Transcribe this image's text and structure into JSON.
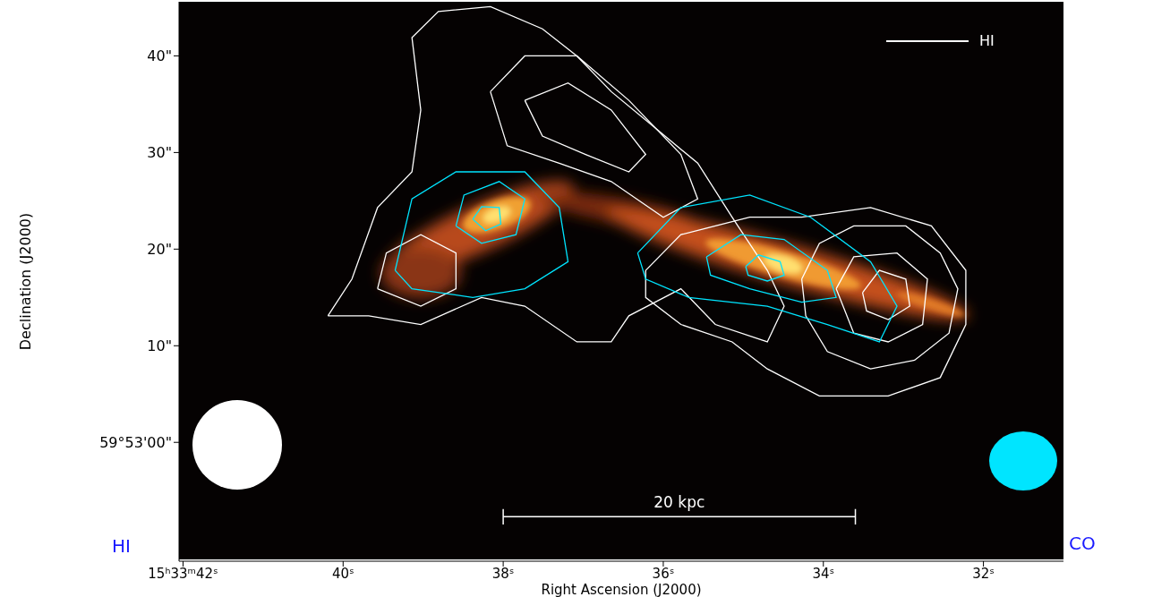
{
  "chart_data": {
    "type": "contour",
    "x_label": "Right Ascension (J2000)",
    "y_label": "Declination (J2000)",
    "xlim": [
      42.05,
      31.0
    ],
    "xticks": [
      {
        "value": 42,
        "label": "15ʰ33ᵐ42ˢ"
      },
      {
        "value": 40,
        "label": "40ˢ"
      },
      {
        "value": 38,
        "label": "38ˢ"
      },
      {
        "value": 36,
        "label": "36ˢ"
      },
      {
        "value": 34,
        "label": "34ˢ"
      },
      {
        "value": 32,
        "label": "32ˢ"
      }
    ],
    "ylim": [
      -12.3,
      45.6
    ],
    "yticks": [
      {
        "value": 0,
        "label": "59°53'00\""
      },
      {
        "value": 10,
        "label": "10\""
      },
      {
        "value": 20,
        "label": "20\""
      },
      {
        "value": 30,
        "label": "30\""
      },
      {
        "value": 40,
        "label": "40\""
      }
    ],
    "grid": false,
    "legend": "top-right",
    "scale_bar": {
      "label": "20 kpc",
      "x": [
        38.0,
        33.6
      ],
      "y": -7.7
    },
    "series": [
      {
        "name": "HI",
        "color": "#ffffff",
        "contours": [
          [
            [
              40.19,
              13.1
            ],
            [
              39.89,
              16.9
            ],
            [
              39.57,
              24.3
            ],
            [
              39.14,
              28.0
            ],
            [
              39.03,
              34.4
            ],
            [
              39.14,
              41.9
            ],
            [
              38.81,
              44.6
            ],
            [
              38.16,
              45.1
            ],
            [
              37.51,
              42.8
            ],
            [
              37.08,
              40.0
            ],
            [
              36.65,
              36.3
            ],
            [
              36.11,
              32.6
            ],
            [
              35.57,
              28.9
            ],
            [
              35.14,
              23.3
            ],
            [
              34.7,
              17.8
            ],
            [
              34.49,
              14.1
            ],
            [
              34.7,
              10.4
            ],
            [
              35.35,
              12.2
            ],
            [
              35.78,
              15.9
            ],
            [
              36.43,
              13.1
            ],
            [
              36.65,
              10.4
            ],
            [
              37.08,
              10.4
            ],
            [
              37.73,
              14.1
            ],
            [
              38.27,
              15.0
            ],
            [
              39.03,
              12.2
            ],
            [
              39.68,
              13.1
            ]
          ],
          [
            [
              38.16,
              36.3
            ],
            [
              37.73,
              40.0
            ],
            [
              37.08,
              40.0
            ],
            [
              36.43,
              35.4
            ],
            [
              35.78,
              29.8
            ],
            [
              35.57,
              25.2
            ],
            [
              36.0,
              23.3
            ],
            [
              36.65,
              27.0
            ],
            [
              37.3,
              28.9
            ],
            [
              37.95,
              30.7
            ]
          ],
          [
            [
              37.73,
              35.4
            ],
            [
              37.19,
              37.2
            ],
            [
              36.65,
              34.4
            ],
            [
              36.22,
              29.8
            ],
            [
              36.43,
              28.0
            ],
            [
              36.97,
              29.8
            ],
            [
              37.51,
              31.7
            ]
          ],
          [
            [
              36.22,
              17.8
            ],
            [
              35.78,
              21.5
            ],
            [
              34.92,
              23.3
            ],
            [
              34.27,
              23.3
            ],
            [
              33.41,
              24.3
            ],
            [
              32.65,
              22.4
            ],
            [
              32.22,
              17.8
            ],
            [
              32.22,
              12.2
            ],
            [
              32.54,
              6.7
            ],
            [
              33.19,
              4.8
            ],
            [
              34.05,
              4.8
            ],
            [
              34.7,
              7.6
            ],
            [
              35.14,
              10.4
            ],
            [
              35.78,
              12.2
            ],
            [
              36.22,
              15.0
            ]
          ],
          [
            [
              34.27,
              16.9
            ],
            [
              34.05,
              20.6
            ],
            [
              33.62,
              22.4
            ],
            [
              32.97,
              22.4
            ],
            [
              32.54,
              19.6
            ],
            [
              32.32,
              15.9
            ],
            [
              32.43,
              11.3
            ],
            [
              32.86,
              8.5
            ],
            [
              33.41,
              7.6
            ],
            [
              33.95,
              9.4
            ],
            [
              34.22,
              13.1
            ]
          ],
          [
            [
              33.84,
              15.9
            ],
            [
              33.62,
              19.2
            ],
            [
              33.08,
              19.6
            ],
            [
              32.7,
              16.9
            ],
            [
              32.76,
              12.2
            ],
            [
              33.19,
              10.4
            ],
            [
              33.62,
              11.3
            ]
          ],
          [
            [
              33.51,
              15.5
            ],
            [
              33.3,
              17.8
            ],
            [
              32.97,
              16.9
            ],
            [
              32.92,
              14.1
            ],
            [
              33.19,
              12.7
            ],
            [
              33.46,
              13.6
            ]
          ],
          [
            [
              39.57,
              15.9
            ],
            [
              39.46,
              19.6
            ],
            [
              39.03,
              21.5
            ],
            [
              38.59,
              19.6
            ],
            [
              38.59,
              15.9
            ],
            [
              39.03,
              14.1
            ]
          ]
        ]
      },
      {
        "name": "CO",
        "color": "#00e5ff",
        "contours": [
          [
            [
              39.35,
              17.8
            ],
            [
              39.14,
              25.2
            ],
            [
              38.59,
              28.0
            ],
            [
              37.73,
              28.0
            ],
            [
              37.3,
              24.3
            ],
            [
              37.19,
              18.7
            ],
            [
              37.73,
              15.9
            ],
            [
              38.38,
              15.0
            ],
            [
              39.14,
              15.9
            ]
          ],
          [
            [
              38.59,
              22.4
            ],
            [
              38.49,
              25.6
            ],
            [
              38.05,
              27.0
            ],
            [
              37.73,
              25.2
            ],
            [
              37.84,
              21.5
            ],
            [
              38.27,
              20.6
            ]
          ],
          [
            [
              38.38,
              23.1
            ],
            [
              38.27,
              24.4
            ],
            [
              38.05,
              24.3
            ],
            [
              38.03,
              22.6
            ],
            [
              38.22,
              21.9
            ]
          ],
          [
            [
              36.32,
              19.6
            ],
            [
              35.78,
              24.3
            ],
            [
              34.92,
              25.6
            ],
            [
              34.16,
              23.3
            ],
            [
              33.41,
              18.7
            ],
            [
              33.08,
              14.1
            ],
            [
              33.3,
              10.4
            ],
            [
              33.95,
              12.2
            ],
            [
              34.7,
              14.1
            ],
            [
              35.68,
              15.0
            ],
            [
              36.22,
              16.9
            ]
          ],
          [
            [
              35.46,
              19.2
            ],
            [
              35.03,
              21.5
            ],
            [
              34.49,
              21.0
            ],
            [
              33.95,
              17.8
            ],
            [
              33.84,
              15.0
            ],
            [
              34.27,
              14.5
            ],
            [
              34.92,
              15.9
            ],
            [
              35.41,
              17.3
            ]
          ],
          [
            [
              34.97,
              18.2
            ],
            [
              34.81,
              19.4
            ],
            [
              34.54,
              18.7
            ],
            [
              34.49,
              17.3
            ],
            [
              34.7,
              16.7
            ],
            [
              34.94,
              17.3
            ]
          ]
        ]
      }
    ]
  }
}
